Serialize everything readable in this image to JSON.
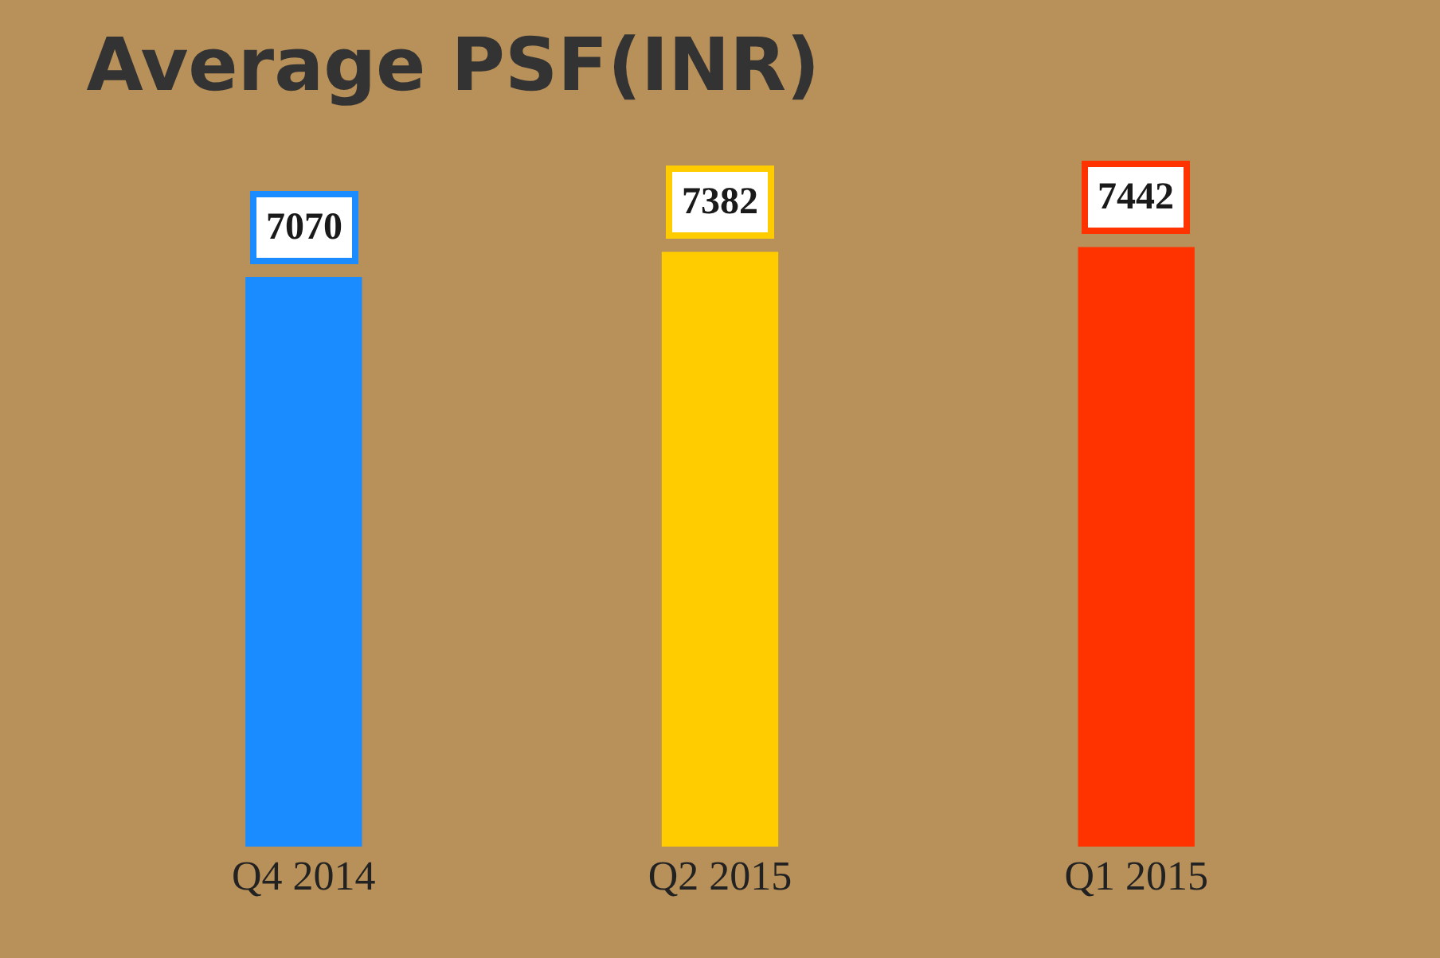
{
  "chart_data": {
    "type": "bar",
    "title": "Average PSF(INR)",
    "categories": [
      "Q4 2014",
      "Q2 2015",
      "Q1 2015"
    ],
    "values": [
      7070,
      7382,
      7442
    ],
    "colors": [
      "#1a8cff",
      "#ffcc00",
      "#ff3300"
    ],
    "data_labels": true
  }
}
